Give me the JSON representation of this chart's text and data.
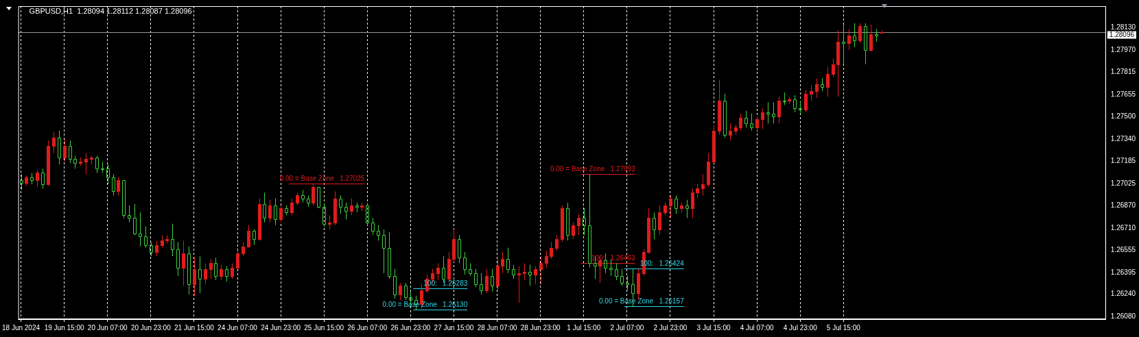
{
  "chart_data": {
    "type": "candlestick",
    "title": "GBPUSD,H1  1.28094 1.28112 1.28087 1.28096",
    "categories": [
      "18 Jun 2024",
      null,
      null,
      null,
      null,
      null,
      null,
      null,
      "19 Jun 15:00",
      null,
      null,
      null,
      null,
      null,
      null,
      null,
      "20 Jun 07:00",
      null,
      null,
      null,
      null,
      null,
      null,
      null,
      "20 Jun 23:00",
      null,
      null,
      null,
      null,
      null,
      null,
      null,
      "21 Jun 15:00",
      null,
      null,
      null,
      null,
      null,
      null,
      null,
      "24 Jun 07:00",
      null,
      null,
      null,
      null,
      null,
      null,
      null,
      "24 Jun 23:00",
      null,
      null,
      null,
      null,
      null,
      null,
      null,
      "25 Jun 15:00",
      null,
      null,
      null,
      null,
      null,
      null,
      null,
      "26 Jun 07:00",
      null,
      null,
      null,
      null,
      null,
      null,
      null,
      "26 Jun 23:00",
      null,
      null,
      null,
      null,
      null,
      null,
      null,
      "27 Jun 15:00",
      null,
      null,
      null,
      null,
      null,
      null,
      null,
      "28 Jun 07:00",
      null,
      null,
      null,
      null,
      null,
      null,
      null,
      "28 Jun 23:00",
      null,
      null,
      null,
      null,
      null,
      null,
      null,
      "1 Jul 15:00",
      null,
      null,
      null,
      null,
      null,
      null,
      null,
      "2 Jul 07:00",
      null,
      null,
      null,
      null,
      null,
      null,
      null,
      "2 Jul 23:00",
      null,
      null,
      null,
      null,
      null,
      null,
      null,
      "3 Jul 15:00",
      null,
      null,
      null,
      null,
      null,
      null,
      null,
      "4 Jul 07:00",
      null,
      null,
      null,
      null,
      null,
      null,
      null,
      "4 Jul 23:00",
      null,
      null,
      null,
      null,
      null,
      null,
      null,
      "5 Jul 15:00",
      null,
      null,
      null,
      null,
      null,
      null,
      null,
      null,
      null,
      null,
      null,
      null,
      null,
      null,
      null,
      null,
      null,
      null,
      null,
      null,
      null,
      null,
      null,
      null,
      null,
      null,
      null,
      null,
      null,
      null,
      null,
      null,
      null,
      null,
      null,
      null,
      null,
      null,
      null,
      null,
      null,
      null,
      null,
      null,
      null,
      null,
      null,
      null
    ],
    "ohlc": [
      [
        1.2705,
        1.2709,
        1.2698,
        1.2703
      ],
      [
        1.2703,
        1.2708,
        1.2701,
        1.2707
      ],
      [
        1.2707,
        1.271,
        1.2702,
        1.2705
      ],
      [
        1.2705,
        1.2712,
        1.27,
        1.271
      ],
      [
        1.271,
        1.2713,
        1.2699,
        1.2702
      ],
      [
        1.2702,
        1.2733,
        1.2701,
        1.2729
      ],
      [
        1.2729,
        1.2739,
        1.2724,
        1.2735
      ],
      [
        1.2735,
        1.274,
        1.2716,
        1.2721
      ],
      [
        1.2721,
        1.2734,
        1.2718,
        1.2729
      ],
      [
        1.2729,
        1.2733,
        1.2717,
        1.272
      ],
      [
        1.272,
        1.2722,
        1.2713,
        1.2717
      ],
      [
        1.2717,
        1.2721,
        1.2715,
        1.2718
      ],
      [
        1.2718,
        1.2724,
        1.2709,
        1.272
      ],
      [
        1.272,
        1.2722,
        1.2716,
        1.2721
      ],
      [
        1.2721,
        1.2722,
        1.271,
        1.2713
      ],
      [
        1.2713,
        1.2718,
        1.271,
        1.2713
      ],
      [
        1.2713,
        1.2716,
        1.2702,
        1.2707
      ],
      [
        1.2707,
        1.2709,
        1.2694,
        1.2697
      ],
      [
        1.2697,
        1.2707,
        1.2694,
        1.2705
      ],
      [
        1.2705,
        1.2705,
        1.2678,
        1.268
      ],
      [
        1.268,
        1.2687,
        1.2675,
        1.2678
      ],
      [
        1.2678,
        1.2688,
        1.2666,
        1.2667
      ],
      [
        1.2667,
        1.2682,
        1.2658,
        1.2665
      ],
      [
        1.2665,
        1.2672,
        1.2657,
        1.2659
      ],
      [
        1.2659,
        1.2661,
        1.2651,
        1.2654
      ],
      [
        1.2654,
        1.2662,
        1.2651,
        1.2659
      ],
      [
        1.2659,
        1.2666,
        1.2657,
        1.2662
      ],
      [
        1.2662,
        1.2666,
        1.266,
        1.2663
      ],
      [
        1.2663,
        1.2674,
        1.2651,
        1.2656
      ],
      [
        1.2656,
        1.2661,
        1.2637,
        1.2643
      ],
      [
        1.2643,
        1.2662,
        1.263,
        1.2653
      ],
      [
        1.2653,
        1.2658,
        1.2624,
        1.2631
      ],
      [
        1.2631,
        1.265,
        1.2623,
        1.2642
      ],
      [
        1.2642,
        1.2651,
        1.2625,
        1.2635
      ],
      [
        1.2635,
        1.2646,
        1.2631,
        1.2642
      ],
      [
        1.2642,
        1.2649,
        1.2635,
        1.2646
      ],
      [
        1.2646,
        1.265,
        1.2634,
        1.2637
      ],
      [
        1.2637,
        1.2645,
        1.2634,
        1.2642
      ],
      [
        1.2642,
        1.2644,
        1.2633,
        1.2637
      ],
      [
        1.2637,
        1.2646,
        1.2635,
        1.2643
      ],
      [
        1.2643,
        1.2655,
        1.2642,
        1.2653
      ],
      [
        1.2653,
        1.2661,
        1.2651,
        1.2658
      ],
      [
        1.2658,
        1.2673,
        1.2657,
        1.2669
      ],
      [
        1.2669,
        1.267,
        1.2659,
        1.2663
      ],
      [
        1.2663,
        1.2692,
        1.2662,
        1.2688
      ],
      [
        1.2688,
        1.2696,
        1.2675,
        1.2678
      ],
      [
        1.2678,
        1.2691,
        1.2675,
        1.2687
      ],
      [
        1.2687,
        1.2692,
        1.2673,
        1.2677
      ],
      [
        1.2677,
        1.2687,
        1.2675,
        1.2685
      ],
      [
        1.2685,
        1.2687,
        1.268,
        1.2682
      ],
      [
        1.2682,
        1.2692,
        1.268,
        1.2689
      ],
      [
        1.2689,
        1.2696,
        1.2687,
        1.2694
      ],
      [
        1.2694,
        1.2698,
        1.2689,
        1.2692
      ],
      [
        1.2692,
        1.2694,
        1.2686,
        1.2689
      ],
      [
        1.2689,
        1.2702,
        1.2687,
        1.27
      ],
      [
        1.27,
        1.27,
        1.2685,
        1.2686
      ],
      [
        1.2686,
        1.2688,
        1.2672,
        1.2674
      ],
      [
        1.2674,
        1.268,
        1.267,
        1.2675
      ],
      [
        1.2675,
        1.2697,
        1.2673,
        1.2692
      ],
      [
        1.2692,
        1.2694,
        1.2681,
        1.2686
      ],
      [
        1.2686,
        1.2689,
        1.2677,
        1.2683
      ],
      [
        1.2683,
        1.2692,
        1.268,
        1.2687
      ],
      [
        1.2687,
        1.2689,
        1.2682,
        1.2686
      ],
      [
        1.2686,
        1.2689,
        1.2683,
        1.2687
      ],
      [
        1.2687,
        1.2688,
        1.2673,
        1.2675
      ],
      [
        1.2675,
        1.2678,
        1.2666,
        1.2669
      ],
      [
        1.2669,
        1.2673,
        1.2662,
        1.2666
      ],
      [
        1.2666,
        1.267,
        1.2639,
        1.2657
      ],
      [
        1.2657,
        1.2668,
        1.2635,
        1.2637
      ],
      [
        1.2637,
        1.2642,
        1.2621,
        1.2624
      ],
      [
        1.2624,
        1.2632,
        1.262,
        1.263
      ],
      [
        1.263,
        1.2632,
        1.262,
        1.2622
      ],
      [
        1.2622,
        1.2626,
        1.2616,
        1.262
      ],
      [
        1.262,
        1.2623,
        1.2613,
        1.2617
      ],
      [
        1.2617,
        1.2631,
        1.2614,
        1.2627
      ],
      [
        1.2627,
        1.2638,
        1.2625,
        1.2635
      ],
      [
        1.2635,
        1.2642,
        1.2632,
        1.2639
      ],
      [
        1.2639,
        1.2646,
        1.2634,
        1.2643
      ],
      [
        1.2643,
        1.2651,
        1.2632,
        1.2635
      ],
      [
        1.2635,
        1.2654,
        1.2632,
        1.2649
      ],
      [
        1.2649,
        1.267,
        1.2647,
        1.2663
      ],
      [
        1.2663,
        1.2666,
        1.2646,
        1.265
      ],
      [
        1.265,
        1.2654,
        1.2638,
        1.2642
      ],
      [
        1.2642,
        1.2646,
        1.2637,
        1.2639
      ],
      [
        1.2639,
        1.2642,
        1.2629,
        1.2631
      ],
      [
        1.2631,
        1.2639,
        1.2624,
        1.2627
      ],
      [
        1.2627,
        1.2642,
        1.2625,
        1.2637
      ],
      [
        1.2637,
        1.2642,
        1.2626,
        1.263
      ],
      [
        1.263,
        1.2649,
        1.2627,
        1.2644
      ],
      [
        1.2644,
        1.2654,
        1.2639,
        1.2649
      ],
      [
        1.2649,
        1.2657,
        1.2639,
        1.2642
      ],
      [
        1.2642,
        1.2645,
        1.2635,
        1.2638
      ],
      [
        1.2638,
        1.2644,
        1.2618,
        1.2639
      ],
      [
        1.2639,
        1.2646,
        1.2634,
        1.264
      ],
      [
        1.264,
        1.2645,
        1.263,
        1.2638
      ],
      [
        1.2638,
        1.2644,
        1.2631,
        1.2642
      ],
      [
        1.2642,
        1.2651,
        1.2631,
        1.2646
      ],
      [
        1.2646,
        1.2655,
        1.2643,
        1.2651
      ],
      [
        1.2651,
        1.2661,
        1.2649,
        1.2657
      ],
      [
        1.2657,
        1.2666,
        1.2655,
        1.2663
      ],
      [
        1.2663,
        1.2687,
        1.2661,
        1.2685
      ],
      [
        1.2685,
        1.2689,
        1.2662,
        1.2666
      ],
      [
        1.2666,
        1.2675,
        1.2663,
        1.2673
      ],
      [
        1.2673,
        1.2681,
        1.2666,
        1.2678
      ],
      [
        1.2678,
        1.2685,
        1.2666,
        1.2673
      ],
      [
        1.2673,
        1.2709,
        1.2643,
        1.2646
      ],
      [
        1.2646,
        1.2651,
        1.2635,
        1.2644
      ],
      [
        1.2644,
        1.2651,
        1.2632,
        1.2648
      ],
      [
        1.2648,
        1.2653,
        1.2639,
        1.2643
      ],
      [
        1.2643,
        1.2649,
        1.2637,
        1.2642
      ],
      [
        1.2642,
        1.2646,
        1.2634,
        1.2637
      ],
      [
        1.2637,
        1.2642,
        1.263,
        1.2632
      ],
      [
        1.2632,
        1.2637,
        1.2627,
        1.2631
      ],
      [
        1.2631,
        1.2642,
        1.2615,
        1.2625
      ],
      [
        1.2625,
        1.2642,
        1.262,
        1.2639
      ],
      [
        1.2639,
        1.2656,
        1.2637,
        1.2654
      ],
      [
        1.2654,
        1.2685,
        1.2653,
        1.2678
      ],
      [
        1.2678,
        1.2682,
        1.2663,
        1.267
      ],
      [
        1.267,
        1.2687,
        1.2666,
        1.2682
      ],
      [
        1.2682,
        1.2689,
        1.268,
        1.2687
      ],
      [
        1.2687,
        1.2694,
        1.2678,
        1.2692
      ],
      [
        1.2692,
        1.2694,
        1.2681,
        1.2685
      ],
      [
        1.2685,
        1.2689,
        1.2682,
        1.2687
      ],
      [
        1.2687,
        1.2691,
        1.2678,
        1.2685
      ],
      [
        1.2685,
        1.2699,
        1.2678,
        1.2696
      ],
      [
        1.2696,
        1.2702,
        1.2692,
        1.2699
      ],
      [
        1.2699,
        1.2709,
        1.2694,
        1.2702
      ],
      [
        1.2702,
        1.2724,
        1.27,
        1.2718
      ],
      [
        1.2718,
        1.2744,
        1.2717,
        1.274
      ],
      [
        1.274,
        1.2776,
        1.2737,
        1.2761
      ],
      [
        1.2761,
        1.2766,
        1.2735,
        1.2737
      ],
      [
        1.2737,
        1.2745,
        1.2733,
        1.274
      ],
      [
        1.274,
        1.2744,
        1.2737,
        1.2742
      ],
      [
        1.2742,
        1.2752,
        1.274,
        1.2749
      ],
      [
        1.2749,
        1.2754,
        1.2742,
        1.2745
      ],
      [
        1.2745,
        1.2752,
        1.274,
        1.2742
      ],
      [
        1.2742,
        1.275,
        1.274,
        1.2748
      ],
      [
        1.2748,
        1.2756,
        1.2741,
        1.2753
      ],
      [
        1.2753,
        1.276,
        1.2745,
        1.2752
      ],
      [
        1.2752,
        1.276,
        1.2745,
        1.275
      ],
      [
        1.275,
        1.2764,
        1.2745,
        1.2761
      ],
      [
        1.2761,
        1.2767,
        1.2758,
        1.2761
      ],
      [
        1.2761,
        1.2764,
        1.2759,
        1.2762
      ],
      [
        1.2762,
        1.2765,
        1.2753,
        1.2756
      ],
      [
        1.2756,
        1.2761,
        1.2752,
        1.2755
      ],
      [
        1.2755,
        1.2769,
        1.2753,
        1.2766
      ],
      [
        1.2766,
        1.2772,
        1.2761,
        1.2768
      ],
      [
        1.2768,
        1.2777,
        1.2763,
        1.2773
      ],
      [
        1.2773,
        1.2777,
        1.2768,
        1.2771
      ],
      [
        1.2771,
        1.2785,
        1.2764,
        1.278
      ],
      [
        1.278,
        1.2791,
        1.2778,
        1.2787
      ],
      [
        1.2787,
        1.2811,
        1.2764,
        1.2803
      ],
      [
        1.2803,
        1.2815,
        1.2787,
        1.2802
      ],
      [
        1.2802,
        1.2812,
        1.2797,
        1.2807
      ],
      [
        1.2807,
        1.2816,
        1.2799,
        1.2804
      ],
      [
        1.2804,
        1.2816,
        1.2802,
        1.2814
      ],
      [
        1.2814,
        1.2816,
        1.2787,
        1.2797
      ],
      [
        1.2797,
        1.2815,
        1.2796,
        1.2808
      ],
      [
        1.2808,
        1.2812,
        1.2803,
        1.2807
      ],
      [
        1.28094,
        1.28112,
        1.28087,
        1.28096
      ],
      null,
      null,
      null,
      null,
      null,
      null,
      null,
      null,
      null,
      null,
      null,
      null,
      null,
      null,
      null,
      null,
      null,
      null,
      null,
      null,
      null,
      null,
      null,
      null,
      null,
      null,
      null,
      null,
      null,
      null,
      null,
      null,
      null,
      null,
      null,
      null,
      null,
      null,
      null,
      null,
      null
    ],
    "colors": [
      "#3fcf3f",
      "#e01c1c",
      "#3fcf3f",
      "#e01c1c",
      "#3fcf3f",
      "#e01c1c",
      "#e01c1c",
      "#3fcf3f",
      "#e01c1c",
      "#3fcf3f",
      "#3fcf3f",
      "#e01c1c",
      "#e01c1c",
      "#e01c1c",
      "#3fcf3f",
      "#3fcf3f",
      "#3fcf3f",
      "#3fcf3f",
      "#e01c1c",
      "#3fcf3f",
      "#3fcf3f",
      "#3fcf3f",
      "#3fcf3f",
      "#3fcf3f",
      "#3fcf3f",
      "#e01c1c",
      "#e01c1c",
      "#e01c1c",
      "#3fcf3f",
      "#3fcf3f",
      "#e01c1c",
      "#3fcf3f",
      "#e01c1c",
      "#3fcf3f",
      "#e01c1c",
      "#e01c1c",
      "#3fcf3f",
      "#e01c1c",
      "#3fcf3f",
      "#e01c1c",
      "#e01c1c",
      "#e01c1c",
      "#e01c1c",
      "#3fcf3f",
      "#e01c1c",
      "#3fcf3f",
      "#e01c1c",
      "#3fcf3f",
      "#e01c1c",
      "#3fcf3f",
      "#e01c1c",
      "#e01c1c",
      "#3fcf3f",
      "#3fcf3f",
      "#e01c1c",
      "#3fcf3f",
      "#3fcf3f",
      "#e01c1c",
      "#e01c1c",
      "#3fcf3f",
      "#3fcf3f",
      "#e01c1c",
      "#3fcf3f",
      "#e01c1c",
      "#3fcf3f",
      "#3fcf3f",
      "#3fcf3f",
      "#3fcf3f",
      "#3fcf3f",
      "#3fcf3f",
      "#e01c1c",
      "#3fcf3f",
      "#3fcf3f",
      "#3fcf3f",
      "#e01c1c",
      "#e01c1c",
      "#e01c1c",
      "#e01c1c",
      "#3fcf3f",
      "#e01c1c",
      "#e01c1c",
      "#3fcf3f",
      "#3fcf3f",
      "#3fcf3f",
      "#3fcf3f",
      "#3fcf3f",
      "#e01c1c",
      "#3fcf3f",
      "#e01c1c",
      "#e01c1c",
      "#3fcf3f",
      "#3fcf3f",
      "#e01c1c",
      "#e01c1c",
      "#3fcf3f",
      "#e01c1c",
      "#e01c1c",
      "#e01c1c",
      "#e01c1c",
      "#e01c1c",
      "#e01c1c",
      "#3fcf3f",
      "#e01c1c",
      "#e01c1c",
      "#3fcf3f",
      "#3fcf3f",
      "#3fcf3f",
      "#e01c1c",
      "#3fcf3f",
      "#3fcf3f",
      "#3fcf3f",
      "#3fcf3f",
      "#3fcf3f",
      "#3fcf3f",
      "#e01c1c",
      "#e01c1c",
      "#e01c1c",
      "#3fcf3f",
      "#e01c1c",
      "#e01c1c",
      "#e01c1c",
      "#3fcf3f",
      "#e01c1c",
      "#3fcf3f",
      "#e01c1c",
      "#e01c1c",
      "#e01c1c",
      "#e01c1c",
      "#e01c1c",
      "#e01c1c",
      "#3fcf3f",
      "#e01c1c",
      "#e01c1c",
      "#e01c1c",
      "#3fcf3f",
      "#3fcf3f",
      "#e01c1c",
      "#e01c1c",
      "#3fcf3f",
      "#3fcf3f",
      "#e01c1c",
      "#3fcf3f",
      "#e01c1c",
      "#3fcf3f",
      "#3fcf3f",
      "#e01c1c",
      "#e01c1c",
      "#e01c1c",
      "#3fcf3f",
      "#e01c1c",
      "#e01c1c",
      "#e01c1c",
      "#3fcf3f",
      "#e01c1c",
      "#3fcf3f",
      "#e01c1c",
      "#3fcf3f",
      "#e01c1c",
      "#3fcf3f",
      "#e01c1c",
      null,
      null,
      null,
      null,
      null,
      null,
      null,
      null,
      null,
      null,
      null,
      null,
      null,
      null,
      null,
      null,
      null,
      null,
      null,
      null,
      null,
      null,
      null,
      null,
      null,
      null,
      null,
      null,
      null,
      null,
      null,
      null,
      null,
      null,
      null,
      null,
      null,
      null,
      null,
      null,
      null
    ],
    "ylim": [
      1.26064,
      1.28281
    ],
    "yticks": [
      {
        "value": 1.2813,
        "label": "1.28130"
      },
      {
        "value": 1.2797,
        "label": "1.27970"
      },
      {
        "value": 1.27815,
        "label": "1.27815"
      },
      {
        "value": 1.27655,
        "label": "1.27655"
      },
      {
        "value": 1.275,
        "label": "1.27500"
      },
      {
        "value": 1.2734,
        "label": "1.27340"
      },
      {
        "value": 1.27185,
        "label": "1.27185"
      },
      {
        "value": 1.27025,
        "label": "1.27025"
      },
      {
        "value": 1.2687,
        "label": "1.26870"
      },
      {
        "value": 1.2671,
        "label": "1.26710"
      },
      {
        "value": 1.26555,
        "label": "1.26555"
      },
      {
        "value": 1.26395,
        "label": "1.26395"
      },
      {
        "value": 1.2624,
        "label": "1.26240"
      },
      {
        "value": 1.2608,
        "label": "1.26080"
      }
    ],
    "grid": "x",
    "ref_lines": [
      {
        "axis": "y",
        "value": 1.28096,
        "label": "1.28096",
        "color": "#9a9a9a"
      },
      {
        "axis": "y",
        "value": 1.27025,
        "label": "0.00 = Base Zone   1.27025",
        "color": "#e01c1c"
      },
      {
        "axis": "y",
        "value": 1.27093,
        "label": "0.00 = Base Zone   1.27093",
        "color": "#e01c1c"
      },
      {
        "axis": "y",
        "value": 1.26463,
        "label": "100:   1.26463",
        "color": "#e01c1c"
      },
      {
        "axis": "y",
        "value": 1.26424,
        "label": "100:   1.26424",
        "color": "#2fd8e8"
      },
      {
        "axis": "y",
        "value": 1.26157,
        "label": "0.00 = Base Zone   1.26157",
        "color": "#2fd8e8"
      },
      {
        "axis": "y",
        "value": 1.26283,
        "label": "100:   1.26283",
        "color": "#2fd8e8"
      },
      {
        "axis": "y",
        "value": 1.2613,
        "label": "0.00 = Base Zone   1.26130",
        "color": "#2fd8e8"
      }
    ]
  }
}
